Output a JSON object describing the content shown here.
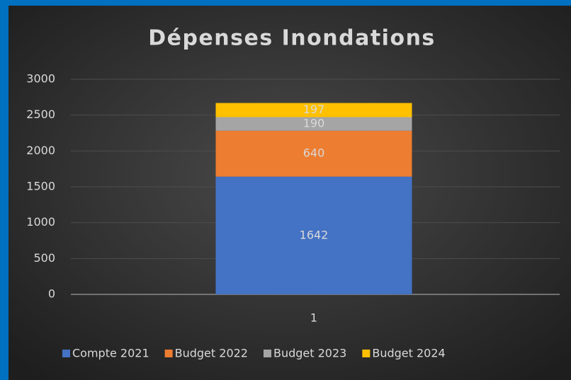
{
  "chart_data": {
    "type": "bar",
    "stacked": true,
    "title": "Dépenses Inondations",
    "categories": [
      "1"
    ],
    "series": [
      {
        "name": "Compte 2021",
        "color": "#4472c4",
        "values": [
          1642
        ]
      },
      {
        "name": "Budget 2022",
        "color": "#ed7d31",
        "values": [
          640
        ]
      },
      {
        "name": "Budget 2023",
        "color": "#a5a5a5",
        "values": [
          190
        ]
      },
      {
        "name": "Budget 2024",
        "color": "#ffc000",
        "values": [
          197
        ]
      }
    ],
    "ylim": [
      0,
      3000
    ],
    "yticks": [
      0,
      500,
      1000,
      1500,
      2000,
      2500,
      3000
    ],
    "grid": true,
    "legend": "bottom"
  }
}
